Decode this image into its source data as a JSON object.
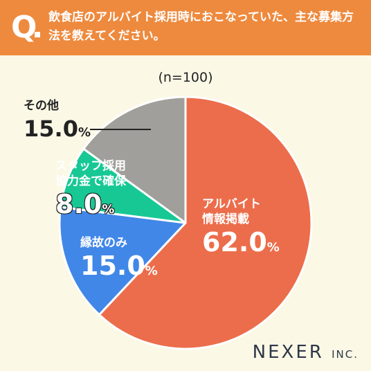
{
  "header": {
    "q_mark": "Q",
    "question": "飲食店のアルバイト採用時におこなっていた、主な募集方法を教えてください。"
  },
  "sample_note": "(n=100)",
  "brand": {
    "name": "NEXER",
    "suffix": "INC."
  },
  "chart_data": {
    "type": "pie",
    "title": "",
    "unit": "%",
    "start_angle_deg": 0,
    "direction": "clockwise",
    "slices": [
      {
        "label": "アルバイト情報掲載",
        "value": 62.0,
        "color": "#ec6d4b"
      },
      {
        "label": "縁故のみ",
        "value": 15.0,
        "color": "#4187e8"
      },
      {
        "label": "スタッフ採用協力金で確保",
        "value": 8.0,
        "color": "#17c895"
      },
      {
        "label": "その他",
        "value": 15.0,
        "color": "#a09f9b"
      }
    ],
    "display_labels": [
      {
        "lines": [
          "アルバイト",
          "情報掲載"
        ],
        "number": "62.0",
        "unit": "%"
      },
      {
        "lines": [
          "縁故のみ"
        ],
        "number": "15.0",
        "unit": "%"
      },
      {
        "lines": [
          "スタッフ採用",
          "協力金で確保"
        ],
        "number": "8.0",
        "unit": "%"
      },
      {
        "lines": [
          "その他"
        ],
        "number": "15.0",
        "unit": "%"
      }
    ]
  }
}
